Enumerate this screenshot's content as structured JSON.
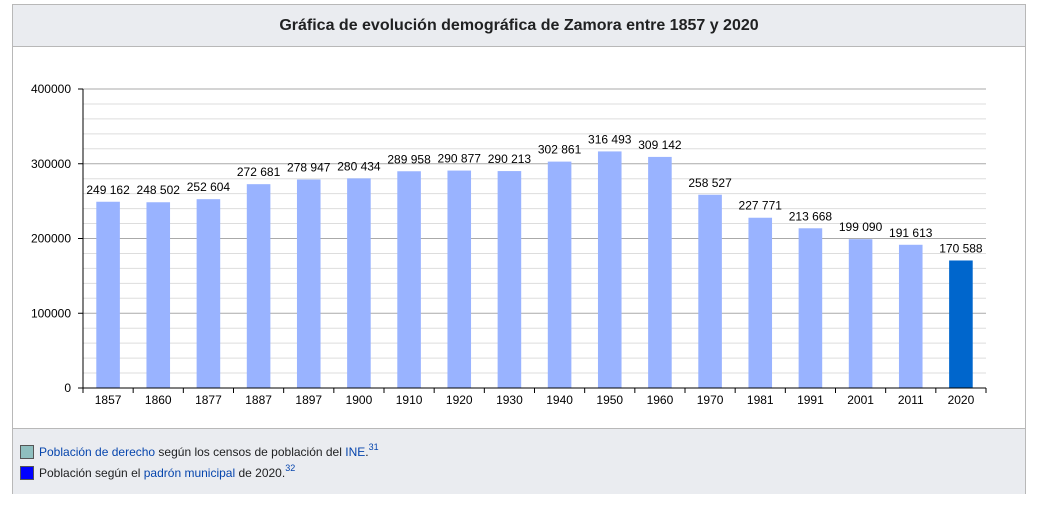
{
  "chart_data": {
    "type": "bar",
    "title": "Gráfica de evolución demográfica de Zamora entre 1857 y 2020",
    "categories": [
      "1857",
      "1860",
      "1877",
      "1887",
      "1897",
      "1900",
      "1910",
      "1920",
      "1930",
      "1940",
      "1950",
      "1960",
      "1970",
      "1981",
      "1991",
      "2001",
      "2011",
      "2020"
    ],
    "values": [
      249162,
      248502,
      252604,
      272681,
      278947,
      280434,
      289958,
      290877,
      290213,
      302861,
      316493,
      309142,
      258527,
      227771,
      213668,
      199090,
      191613,
      170588
    ],
    "value_labels": [
      "249 162",
      "248 502",
      "252 604",
      "272 681",
      "278 947",
      "280 434",
      "289 958",
      "290 877",
      "290 213",
      "302 861",
      "316 493",
      "309 142",
      "258 527",
      "227 771",
      "213 668",
      "199 090",
      "191 613",
      "170 588"
    ],
    "ylim": [
      0,
      400000
    ],
    "yticks": [
      "0",
      "100000",
      "200000",
      "300000",
      "400000"
    ],
    "xlabel": "",
    "ylabel": "",
    "grid": true,
    "colors": {
      "census": "#99b3ff",
      "padron": "#0066cc"
    },
    "series_index_padron": 17
  },
  "legend": {
    "census_color": "#8fbfbf",
    "padron_color": "#0000ff",
    "item1": {
      "link1": "Población de derecho",
      "text1": " según los censos de población del ",
      "link2": "INE",
      "text2": ".",
      "ref": "31"
    },
    "item2": {
      "text1": "Población según el ",
      "link1": "padrón municipal",
      "text2": " de 2020.",
      "ref": "32"
    }
  }
}
